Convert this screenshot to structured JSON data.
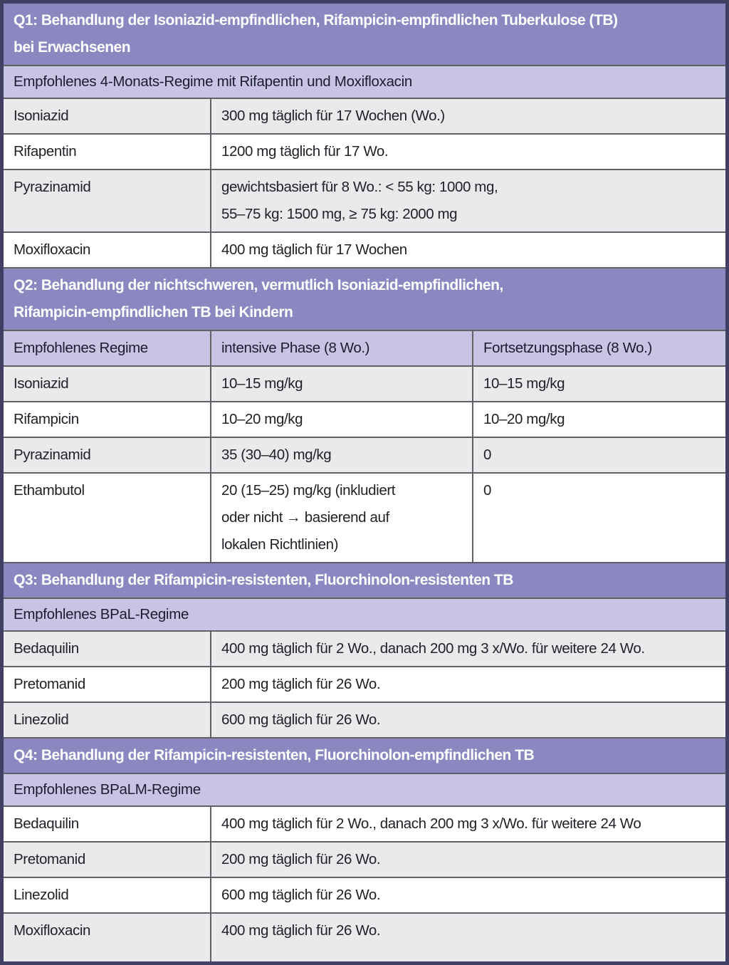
{
  "theme": {
    "header_bg": "#8B88C1",
    "subheader_bg": "#C7C4E4",
    "row_shade_bg": "#EAEAEC",
    "row_white_bg": "#FFFFFF",
    "outer_border": "#413F63",
    "grid_line": "#606066",
    "header_text": "#FFFFFF",
    "subheader_text": "#1C1B33",
    "body_text": "#222127"
  },
  "table": {
    "sections": [
      {
        "id": "q1",
        "header": "Q1: Behandlung der Isoniazid-empfindlichen, Rifampicin-empfindlichen Tuberkulose (TB)\nbei Erwachsenen",
        "subheader": "Empfohlenes 4-Monats-Regime mit Rifapentin und Moxifloxacin",
        "rows": [
          {
            "drug": "Isoniazid",
            "cells": [
              "300 mg täglich für 17 Wochen (Wo.)"
            ]
          },
          {
            "drug": "Rifapentin",
            "cells": [
              "1200 mg täglich für 17 Wo."
            ]
          },
          {
            "drug": "Pyrazinamid",
            "cells": [
              "gewichtsbasiert für 8 Wo.: < 55 kg: 1000 mg,\n55–75 kg: 1500 mg, ≥ 75 kg: 2000 mg"
            ]
          },
          {
            "drug": "Moxifloxacin",
            "cells": [
              "400 mg täglich für 17 Wochen"
            ]
          }
        ]
      },
      {
        "id": "q2",
        "header": "Q2: Behandlung der nichtschweren, vermutlich Isoniazid-empfindlichen,\nRifampicin-empfindlichen TB bei Kindern",
        "columns": [
          "Empfohlenes Regime",
          "intensive Phase (8 Wo.)",
          "Fortsetzungsphase (8 Wo.)"
        ],
        "rows": [
          {
            "drug": "Isoniazid",
            "cells": [
              "10–15 mg/kg",
              "10–15 mg/kg"
            ]
          },
          {
            "drug": "Rifampicin",
            "cells": [
              "10–20 mg/kg",
              "10–20 mg/kg"
            ]
          },
          {
            "drug": "Pyrazinamid",
            "cells": [
              "35 (30–40) mg/kg",
              "0"
            ]
          },
          {
            "drug": "Ethambutol",
            "cells": [
              "20 (15–25) mg/kg (inkludiert\noder nicht → basierend auf\nlokalen Richtlinien)",
              "0"
            ]
          }
        ]
      },
      {
        "id": "q3",
        "header": "Q3: Behandlung der Rifampicin-resistenten, Fluorchinolon-resistenten TB",
        "subheader": "Empfohlenes BPaL-Regime",
        "rows": [
          {
            "drug": "Bedaquilin",
            "cells": [
              "400 mg täglich für 2 Wo., danach 200 mg 3 x/Wo. für weitere 24 Wo."
            ]
          },
          {
            "drug": "Pretomanid",
            "cells": [
              "200 mg täglich für 26 Wo."
            ]
          },
          {
            "drug": "Linezolid",
            "cells": [
              "600 mg täglich für 26 Wo."
            ]
          }
        ]
      },
      {
        "id": "q4",
        "header": "Q4: Behandlung der Rifampicin-resistenten, Fluorchinolon-empfindlichen TB",
        "subheader": "Empfohlenes BPaLM-Regime",
        "rows": [
          {
            "drug": "Bedaquilin",
            "cells": [
              "400 mg täglich für 2 Wo., danach 200 mg 3 x/Wo. für weitere 24 Wo"
            ]
          },
          {
            "drug": "Pretomanid",
            "cells": [
              "200 mg täglich für 26 Wo."
            ]
          },
          {
            "drug": "Linezolid",
            "cells": [
              "600 mg täglich für 26 Wo."
            ]
          },
          {
            "drug": "Moxifloxacin",
            "cells": [
              "400 mg täglich für 26 Wo."
            ]
          }
        ]
      }
    ]
  }
}
